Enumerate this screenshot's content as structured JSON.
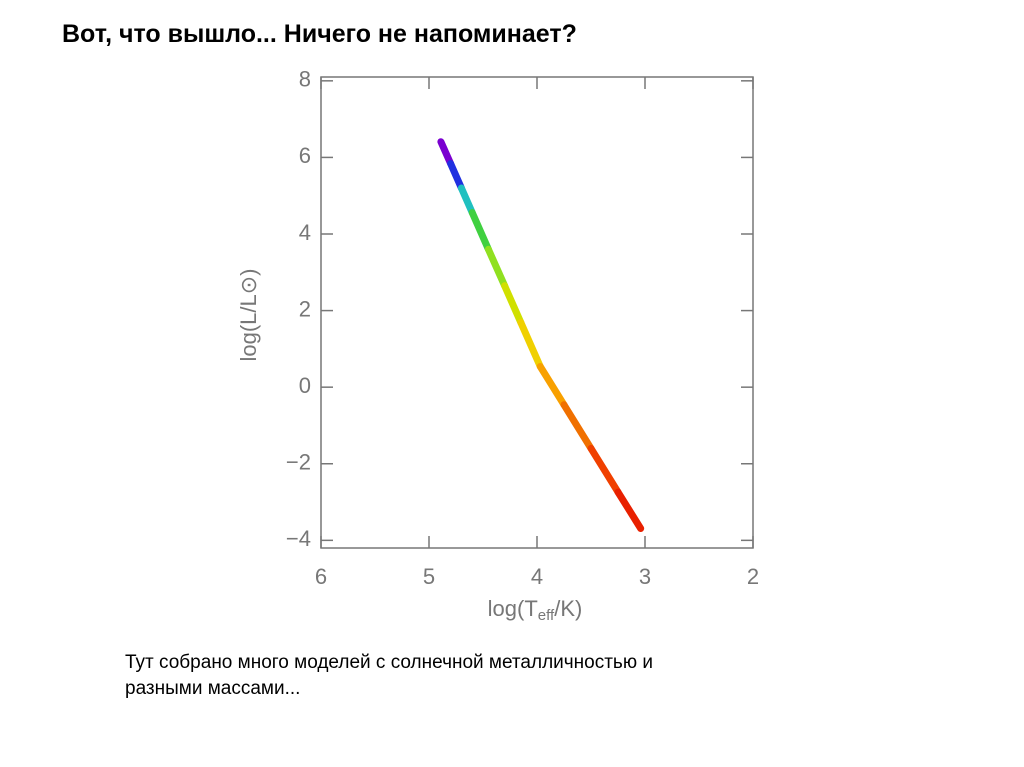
{
  "header": {
    "title": "Вот, что вышло... Ничего не напоминает?"
  },
  "caption": {
    "lines": [
      "Тут собрано много моделей с солнечной металличностью и",
      "разными массами..."
    ]
  },
  "chart_data": {
    "type": "line",
    "x_label": [
      "log(T",
      "eff",
      "/K)"
    ],
    "y_label": "log(L/L⊙)",
    "x": [
      4.89,
      4.8,
      4.7,
      4.6,
      4.45,
      4.3,
      4.15,
      3.97,
      3.75,
      3.5,
      3.25,
      3.04
    ],
    "series": [
      {
        "values": [
          6.41,
          5.84,
          5.2,
          4.56,
          3.6,
          2.65,
          1.69,
          0.54,
          -0.46,
          -1.6,
          -2.74,
          -3.69
        ],
        "colors": [
          "#7a00d0",
          "#2030e0",
          "#20c0c0",
          "#40d040",
          "#90e020",
          "#d0e000",
          "#f0d000",
          "#f8a000",
          "#f07000",
          "#f04000",
          "#e82000",
          "#e00000"
        ]
      }
    ],
    "xlim": [
      6,
      2
    ],
    "ylim": [
      -4.2,
      8.1
    ],
    "xticks": [
      6,
      5,
      4,
      3,
      2
    ],
    "yticks": [
      {
        "value": -4,
        "label": "−4"
      },
      {
        "value": -2,
        "label": "−2"
      },
      0,
      2,
      4,
      6,
      8
    ]
  }
}
